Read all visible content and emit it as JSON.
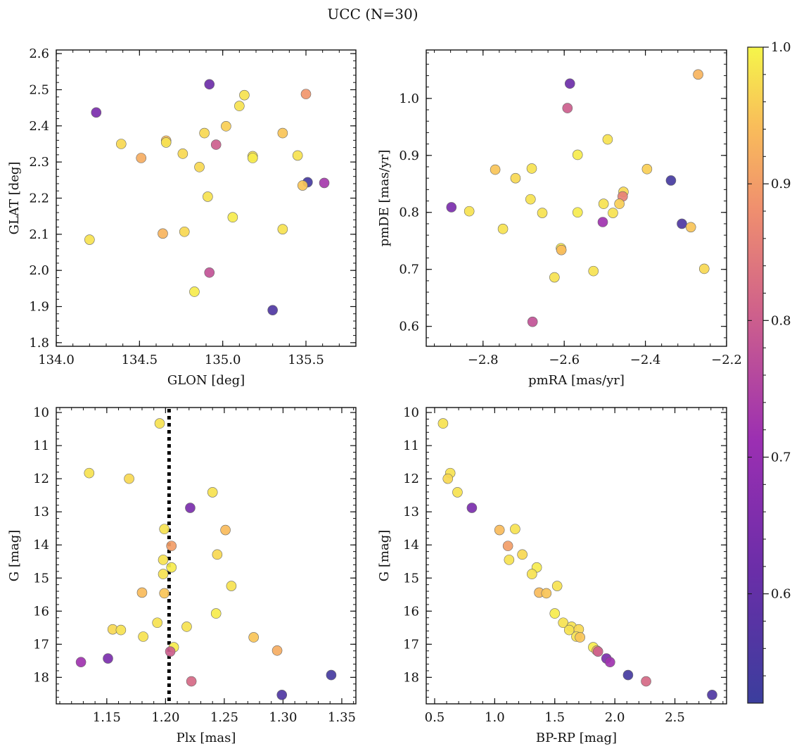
{
  "figure": {
    "title": "UCC (N=30)",
    "colorbar": {
      "min": 0.52,
      "max": 1.0,
      "ticks": [
        0.6,
        0.7,
        0.8,
        0.9,
        1.0
      ],
      "tick_labels": [
        "0.6",
        "0.7",
        "0.8",
        "0.9",
        "1.0"
      ],
      "colormap": "plasma"
    }
  },
  "chart_data": [
    {
      "type": "scatter",
      "id": "glon-glat",
      "xlabel": "GLON [deg]",
      "ylabel": "GLAT [deg]",
      "xlim": [
        134.0,
        135.8
      ],
      "ylim": [
        1.79,
        2.61
      ],
      "xticks": [
        134.0,
        134.5,
        135.0,
        135.5
      ],
      "xtick_labels": [
        "134.0",
        "134.5",
        "135.0",
        "135.5"
      ],
      "yticks": [
        1.8,
        1.9,
        2.0,
        2.1,
        2.2,
        2.3,
        2.4,
        2.5,
        2.6
      ],
      "ytick_labels": [
        "1.8",
        "1.9",
        "2.0",
        "2.1",
        "2.2",
        "2.3",
        "2.4",
        "2.5",
        "2.6"
      ],
      "y_inverted": false,
      "points": [
        {
          "x": 134.24,
          "y": 2.437,
          "c": 0.65
        },
        {
          "x": 134.92,
          "y": 2.515,
          "c": 0.62
        },
        {
          "x": 135.5,
          "y": 2.488,
          "c": 0.89
        },
        {
          "x": 135.13,
          "y": 2.485,
          "c": 0.98
        },
        {
          "x": 135.1,
          "y": 2.455,
          "c": 0.98
        },
        {
          "x": 135.02,
          "y": 2.399,
          "c": 0.96
        },
        {
          "x": 134.39,
          "y": 2.35,
          "c": 0.97
        },
        {
          "x": 134.89,
          "y": 2.38,
          "c": 0.97
        },
        {
          "x": 134.96,
          "y": 2.348,
          "c": 0.8
        },
        {
          "x": 135.36,
          "y": 2.38,
          "c": 0.95
        },
        {
          "x": 134.66,
          "y": 2.359,
          "c": 0.94
        },
        {
          "x": 134.66,
          "y": 2.354,
          "c": 0.98
        },
        {
          "x": 134.51,
          "y": 2.311,
          "c": 0.92
        },
        {
          "x": 134.76,
          "y": 2.323,
          "c": 0.97
        },
        {
          "x": 135.18,
          "y": 2.316,
          "c": 0.98
        },
        {
          "x": 135.18,
          "y": 2.311,
          "c": 0.99
        },
        {
          "x": 135.45,
          "y": 2.318,
          "c": 0.98
        },
        {
          "x": 134.86,
          "y": 2.286,
          "c": 0.97
        },
        {
          "x": 135.51,
          "y": 2.244,
          "c": 0.54
        },
        {
          "x": 135.61,
          "y": 2.242,
          "c": 0.73
        },
        {
          "x": 135.48,
          "y": 2.235,
          "c": 0.95
        },
        {
          "x": 134.91,
          "y": 2.204,
          "c": 0.98
        },
        {
          "x": 135.06,
          "y": 2.147,
          "c": 0.99
        },
        {
          "x": 134.77,
          "y": 2.107,
          "c": 0.97
        },
        {
          "x": 135.36,
          "y": 2.114,
          "c": 0.98
        },
        {
          "x": 134.64,
          "y": 2.102,
          "c": 0.93
        },
        {
          "x": 134.2,
          "y": 2.085,
          "c": 0.98
        },
        {
          "x": 134.92,
          "y": 1.994,
          "c": 0.78
        },
        {
          "x": 134.83,
          "y": 1.941,
          "c": 0.99
        },
        {
          "x": 135.3,
          "y": 1.89,
          "c": 0.56
        }
      ]
    },
    {
      "type": "scatter",
      "id": "pmra-pmde",
      "xlabel": "pmRA [mas/yr]",
      "ylabel": "pmDE [mas/yr]",
      "xlim": [
        -2.94,
        -2.2
      ],
      "ylim": [
        0.565,
        1.085
      ],
      "xticks": [
        -2.8,
        -2.6,
        -2.4,
        -2.2
      ],
      "xtick_labels": [
        "−2.8",
        "−2.6",
        "−2.4",
        "−2.2"
      ],
      "yticks": [
        0.6,
        0.7,
        0.8,
        0.9,
        1.0
      ],
      "ytick_labels": [
        "0.6",
        "0.7",
        "0.8",
        "0.9",
        "1.0"
      ],
      "y_inverted": false,
      "points": [
        {
          "x": -2.27,
          "y": 1.042,
          "c": 0.93
        },
        {
          "x": -2.586,
          "y": 1.026,
          "c": 0.62
        },
        {
          "x": -2.592,
          "y": 0.983,
          "c": 0.8
        },
        {
          "x": -2.493,
          "y": 0.928,
          "c": 0.98
        },
        {
          "x": -2.567,
          "y": 0.901,
          "c": 0.99
        },
        {
          "x": -2.77,
          "y": 0.875,
          "c": 0.95
        },
        {
          "x": -2.68,
          "y": 0.877,
          "c": 0.98
        },
        {
          "x": -2.396,
          "y": 0.876,
          "c": 0.96
        },
        {
          "x": -2.72,
          "y": 0.86,
          "c": 0.97
        },
        {
          "x": -2.337,
          "y": 0.856,
          "c": 0.54
        },
        {
          "x": -2.454,
          "y": 0.836,
          "c": 0.97
        },
        {
          "x": -2.456,
          "y": 0.828,
          "c": 0.86
        },
        {
          "x": -2.683,
          "y": 0.823,
          "c": 0.98
        },
        {
          "x": -2.464,
          "y": 0.815,
          "c": 0.96
        },
        {
          "x": -2.503,
          "y": 0.815,
          "c": 0.98
        },
        {
          "x": -2.878,
          "y": 0.809,
          "c": 0.65
        },
        {
          "x": -2.834,
          "y": 0.802,
          "c": 0.98
        },
        {
          "x": -2.567,
          "y": 0.8,
          "c": 0.99
        },
        {
          "x": -2.654,
          "y": 0.799,
          "c": 0.98
        },
        {
          "x": -2.48,
          "y": 0.799,
          "c": 0.98
        },
        {
          "x": -2.505,
          "y": 0.783,
          "c": 0.72
        },
        {
          "x": -2.31,
          "y": 0.78,
          "c": 0.56
        },
        {
          "x": -2.288,
          "y": 0.774,
          "c": 0.95
        },
        {
          "x": -2.751,
          "y": 0.771,
          "c": 0.98
        },
        {
          "x": -2.608,
          "y": 0.737,
          "c": 0.99
        },
        {
          "x": -2.607,
          "y": 0.734,
          "c": 0.94
        },
        {
          "x": -2.255,
          "y": 0.701,
          "c": 0.97
        },
        {
          "x": -2.528,
          "y": 0.697,
          "c": 0.98
        },
        {
          "x": -2.624,
          "y": 0.686,
          "c": 0.98
        },
        {
          "x": -2.678,
          "y": 0.608,
          "c": 0.78
        }
      ]
    },
    {
      "type": "scatter",
      "id": "plx-g",
      "xlabel": "Plx [mas]",
      "ylabel": "G [mag]",
      "xlim": [
        1.107,
        1.362
      ],
      "ylim": [
        9.85,
        18.8
      ],
      "xticks": [
        1.15,
        1.2,
        1.25,
        1.3,
        1.35
      ],
      "xtick_labels": [
        "1.15",
        "1.20",
        "1.25",
        "1.30",
        "1.35"
      ],
      "yticks": [
        10,
        11,
        12,
        13,
        14,
        15,
        16,
        17,
        18
      ],
      "ytick_labels": [
        "10",
        "11",
        "12",
        "13",
        "14",
        "15",
        "16",
        "17",
        "18"
      ],
      "y_inverted": true,
      "vline": {
        "x": 1.203,
        "style": "dotted"
      },
      "points": [
        {
          "x": 1.195,
          "y": 10.33,
          "c": 0.98
        },
        {
          "x": 1.135,
          "y": 11.83,
          "c": 0.98
        },
        {
          "x": 1.169,
          "y": 12.0,
          "c": 0.97
        },
        {
          "x": 1.24,
          "y": 12.41,
          "c": 0.98
        },
        {
          "x": 1.221,
          "y": 12.88,
          "c": 0.65
        },
        {
          "x": 1.199,
          "y": 13.52,
          "c": 0.98
        },
        {
          "x": 1.251,
          "y": 13.55,
          "c": 0.94
        },
        {
          "x": 1.205,
          "y": 14.03,
          "c": 0.9
        },
        {
          "x": 1.244,
          "y": 14.29,
          "c": 0.97
        },
        {
          "x": 1.198,
          "y": 14.45,
          "c": 0.98
        },
        {
          "x": 1.205,
          "y": 14.68,
          "c": 0.99
        },
        {
          "x": 1.198,
          "y": 14.88,
          "c": 0.98
        },
        {
          "x": 1.256,
          "y": 15.24,
          "c": 0.98
        },
        {
          "x": 1.18,
          "y": 15.44,
          "c": 0.94
        },
        {
          "x": 1.199,
          "y": 15.46,
          "c": 0.95
        },
        {
          "x": 1.243,
          "y": 16.07,
          "c": 0.99
        },
        {
          "x": 1.193,
          "y": 16.35,
          "c": 0.98
        },
        {
          "x": 1.218,
          "y": 16.47,
          "c": 0.98
        },
        {
          "x": 1.155,
          "y": 16.55,
          "c": 0.97
        },
        {
          "x": 1.162,
          "y": 16.57,
          "c": 0.98
        },
        {
          "x": 1.181,
          "y": 16.77,
          "c": 0.98
        },
        {
          "x": 1.275,
          "y": 16.79,
          "c": 0.95
        },
        {
          "x": 1.207,
          "y": 17.09,
          "c": 0.99
        },
        {
          "x": 1.295,
          "y": 17.19,
          "c": 0.92
        },
        {
          "x": 1.204,
          "y": 17.22,
          "c": 0.8
        },
        {
          "x": 1.128,
          "y": 17.54,
          "c": 0.72
        },
        {
          "x": 1.151,
          "y": 17.43,
          "c": 0.65
        },
        {
          "x": 1.341,
          "y": 17.93,
          "c": 0.54
        },
        {
          "x": 1.222,
          "y": 18.12,
          "c": 0.82
        },
        {
          "x": 1.299,
          "y": 18.53,
          "c": 0.56
        }
      ]
    },
    {
      "type": "scatter",
      "id": "bprp-g",
      "xlabel": "BP-RP [mag]",
      "ylabel": "G [mag]",
      "xlim": [
        0.43,
        2.93
      ],
      "ylim": [
        9.85,
        18.8
      ],
      "xticks": [
        0.5,
        1.0,
        1.5,
        2.0,
        2.5
      ],
      "xtick_labels": [
        "0.5",
        "1.0",
        "1.5",
        "2.0",
        "2.5"
      ],
      "yticks": [
        10,
        11,
        12,
        13,
        14,
        15,
        16,
        17,
        18
      ],
      "ytick_labels": [
        "10",
        "11",
        "12",
        "13",
        "14",
        "15",
        "16",
        "17",
        "18"
      ],
      "y_inverted": true,
      "points": [
        {
          "x": 0.57,
          "y": 10.33,
          "c": 0.98
        },
        {
          "x": 0.63,
          "y": 11.83,
          "c": 0.98
        },
        {
          "x": 0.61,
          "y": 12.0,
          "c": 0.97
        },
        {
          "x": 0.69,
          "y": 12.41,
          "c": 0.98
        },
        {
          "x": 0.81,
          "y": 12.88,
          "c": 0.65
        },
        {
          "x": 1.04,
          "y": 13.55,
          "c": 0.94
        },
        {
          "x": 1.17,
          "y": 13.52,
          "c": 0.98
        },
        {
          "x": 1.11,
          "y": 14.03,
          "c": 0.9
        },
        {
          "x": 1.23,
          "y": 14.29,
          "c": 0.97
        },
        {
          "x": 1.12,
          "y": 14.45,
          "c": 0.98
        },
        {
          "x": 1.35,
          "y": 14.68,
          "c": 0.99
        },
        {
          "x": 1.31,
          "y": 14.88,
          "c": 0.98
        },
        {
          "x": 1.52,
          "y": 15.24,
          "c": 0.98
        },
        {
          "x": 1.37,
          "y": 15.44,
          "c": 0.94
        },
        {
          "x": 1.43,
          "y": 15.46,
          "c": 0.95
        },
        {
          "x": 1.5,
          "y": 16.07,
          "c": 0.99
        },
        {
          "x": 1.57,
          "y": 16.35,
          "c": 0.98
        },
        {
          "x": 1.64,
          "y": 16.47,
          "c": 0.98
        },
        {
          "x": 1.62,
          "y": 16.57,
          "c": 0.98
        },
        {
          "x": 1.7,
          "y": 16.55,
          "c": 0.97
        },
        {
          "x": 1.68,
          "y": 16.77,
          "c": 0.98
        },
        {
          "x": 1.71,
          "y": 16.79,
          "c": 0.95
        },
        {
          "x": 1.82,
          "y": 17.09,
          "c": 0.99
        },
        {
          "x": 1.85,
          "y": 17.19,
          "c": 0.92
        },
        {
          "x": 1.86,
          "y": 17.22,
          "c": 0.8
        },
        {
          "x": 1.93,
          "y": 17.43,
          "c": 0.65
        },
        {
          "x": 1.96,
          "y": 17.54,
          "c": 0.72
        },
        {
          "x": 2.11,
          "y": 17.93,
          "c": 0.54
        },
        {
          "x": 2.26,
          "y": 18.12,
          "c": 0.82
        },
        {
          "x": 2.81,
          "y": 18.53,
          "c": 0.56
        }
      ]
    }
  ]
}
